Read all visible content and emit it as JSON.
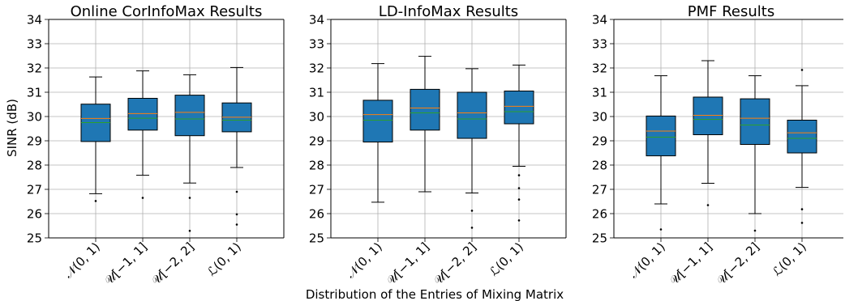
{
  "figure": {
    "ylabel": "SINR (dB)",
    "xlabel": "Distribution of the Entries of Mixing Matrix"
  },
  "colors": {
    "box_fill": "#1f77b4",
    "median": "#ff7f0e",
    "mean": "#2ca02c",
    "grid": "#b0b0b0"
  },
  "chart_data": [
    {
      "type": "box",
      "title": "Online CorInfoMax Results",
      "categories": [
        "𝒩(0, 1)",
        "𝒰[−1, 1]",
        "𝒰[−2, 2]",
        "ℒ(0, 1)"
      ],
      "ylim": [
        25,
        34
      ],
      "yticks": [
        25,
        26,
        27,
        28,
        29,
        30,
        31,
        32,
        33,
        34
      ],
      "grid": true,
      "boxes": [
        {
          "whisker_low": 26.82,
          "q1": 28.97,
          "median": 29.92,
          "mean": 29.75,
          "q3": 30.51,
          "whisker_high": 31.63,
          "outliers": [
            26.52
          ]
        },
        {
          "whisker_low": 27.58,
          "q1": 29.44,
          "median": 30.12,
          "mean": 29.93,
          "q3": 30.75,
          "whisker_high": 31.88,
          "outliers": [
            26.65
          ]
        },
        {
          "whisker_low": 27.26,
          "q1": 29.21,
          "median": 30.17,
          "mean": 29.9,
          "q3": 30.88,
          "whisker_high": 31.72,
          "outliers": [
            26.65,
            25.29
          ]
        },
        {
          "whisker_low": 27.9,
          "q1": 29.37,
          "median": 29.97,
          "mean": 29.85,
          "q3": 30.56,
          "whisker_high": 32.02,
          "outliers": [
            26.9,
            25.97,
            25.55
          ]
        }
      ]
    },
    {
      "type": "box",
      "title": "LD-InfoMax Results",
      "categories": [
        "𝒩(0, 1)",
        "𝒰[−1, 1]",
        "𝒰[−2, 2]",
        "ℒ(0, 1)"
      ],
      "ylim": [
        25,
        34
      ],
      "yticks": [
        25,
        26,
        27,
        28,
        29,
        30,
        31,
        32,
        33,
        34
      ],
      "grid": true,
      "boxes": [
        {
          "whisker_low": 26.47,
          "q1": 28.95,
          "median": 30.08,
          "mean": 29.85,
          "q3": 30.67,
          "whisker_high": 32.18,
          "outliers": []
        },
        {
          "whisker_low": 26.9,
          "q1": 29.44,
          "median": 30.35,
          "mean": 30.15,
          "q3": 31.12,
          "whisker_high": 32.48,
          "outliers": []
        },
        {
          "whisker_low": 26.85,
          "q1": 29.1,
          "median": 30.15,
          "mean": 29.9,
          "q3": 31.0,
          "whisker_high": 31.97,
          "outliers": [
            26.12,
            25.42
          ]
        },
        {
          "whisker_low": 27.95,
          "q1": 29.7,
          "median": 30.42,
          "mean": 30.2,
          "q3": 31.05,
          "whisker_high": 32.12,
          "outliers": [
            27.58,
            27.05,
            26.58,
            25.72
          ]
        }
      ]
    },
    {
      "type": "box",
      "title": "PMF Results",
      "categories": [
        "𝒩(0, 1)",
        "𝒰[−1, 1]",
        "𝒰[−2, 2]",
        "ℒ(0, 1)"
      ],
      "ylim": [
        25,
        34
      ],
      "yticks": [
        25,
        26,
        27,
        28,
        29,
        30,
        31,
        32,
        33,
        34
      ],
      "grid": true,
      "boxes": [
        {
          "whisker_low": 26.4,
          "q1": 28.38,
          "median": 29.4,
          "mean": 29.15,
          "q3": 30.02,
          "whisker_high": 31.68,
          "outliers": [
            25.35
          ]
        },
        {
          "whisker_low": 27.25,
          "q1": 29.25,
          "median": 30.05,
          "mean": 29.88,
          "q3": 30.8,
          "whisker_high": 32.3,
          "outliers": [
            26.35
          ]
        },
        {
          "whisker_low": 26.0,
          "q1": 28.85,
          "median": 29.93,
          "mean": 29.65,
          "q3": 30.73,
          "whisker_high": 31.68,
          "outliers": [
            25.3
          ]
        },
        {
          "whisker_low": 27.08,
          "q1": 28.5,
          "median": 29.33,
          "mean": 29.1,
          "q3": 29.85,
          "whisker_high": 31.27,
          "outliers": [
            31.92,
            26.18,
            25.62
          ]
        }
      ]
    }
  ]
}
